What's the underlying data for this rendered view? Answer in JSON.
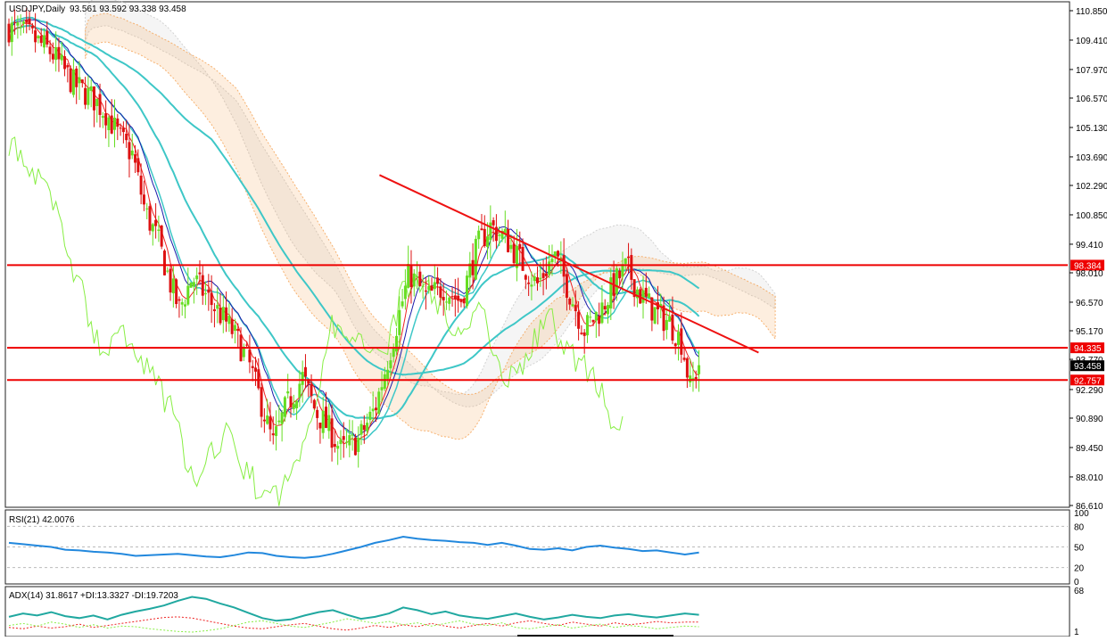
{
  "main": {
    "title": "USDJPY,Daily",
    "ohlc": "93.561 93.592 93.338 93.458"
  },
  "rsi_panel": {
    "label": "RSI(21) 42.0076"
  },
  "adx_panel": {
    "label": "ADX(14) 31.8617 +DI:13.3327 -DI:19.7203"
  },
  "colors": {
    "bull": "#66dd22",
    "bear": "#dd1111",
    "level": "#ee0000",
    "trend": "#ee1111",
    "teal": "#3ec7c7",
    "navy": "#1a1aaa",
    "red_ma": "#ee2222",
    "green_line": "#88ee44",
    "cloud_orange": "#f5a050",
    "cloud_gray": "#c8c8c8",
    "rsi": "#2288dd",
    "adx": "#20a8a0"
  },
  "chart_data": [
    {
      "type": "candlestick",
      "symbol": "USDJPY",
      "timeframe": "Daily",
      "ylim": [
        86.61,
        111.2
      ],
      "y_ticks": [
        "110.850",
        "109.410",
        "107.970",
        "106.570",
        "105.130",
        "103.690",
        "102.290",
        "100.850",
        "99.410",
        "98.010",
        "96.570",
        "95.170",
        "93.770",
        "92.290",
        "90.890",
        "89.450",
        "88.010",
        "86.610"
      ],
      "levels": [
        {
          "value": 98.384,
          "label": "98.384"
        },
        {
          "value": 94.335,
          "label": "94.335"
        },
        {
          "value": 92.757,
          "label": "92.757"
        }
      ],
      "current": {
        "value": 93.458,
        "label": "93.458"
      },
      "trendline": {
        "from": [
          0.435,
          102.8
        ],
        "to": [
          0.88,
          94.1
        ]
      },
      "price_path": [
        [
          0,
          110
        ],
        [
          0.025,
          109.6
        ],
        [
          0.05,
          108.8
        ],
        [
          0.075,
          107.3
        ],
        [
          0.1,
          106.5
        ],
        [
          0.115,
          105.8
        ],
        [
          0.13,
          104.6
        ],
        [
          0.145,
          103.8
        ],
        [
          0.16,
          101
        ],
        [
          0.175,
          99.6
        ],
        [
          0.19,
          97.4
        ],
        [
          0.2,
          96.2
        ],
        [
          0.215,
          97.8
        ],
        [
          0.24,
          96.4
        ],
        [
          0.26,
          95.3
        ],
        [
          0.28,
          93.8
        ],
        [
          0.295,
          91.8
        ],
        [
          0.31,
          89.6
        ],
        [
          0.325,
          91.4
        ],
        [
          0.345,
          92.9
        ],
        [
          0.36,
          91.2
        ],
        [
          0.375,
          90.4
        ],
        [
          0.39,
          89.3
        ],
        [
          0.41,
          89.8
        ],
        [
          0.43,
          91.4
        ],
        [
          0.45,
          94.6
        ],
        [
          0.47,
          98
        ],
        [
          0.49,
          96.8
        ],
        [
          0.51,
          97.3
        ],
        [
          0.53,
          96.6
        ],
        [
          0.55,
          99.3
        ],
        [
          0.565,
          100.3
        ],
        [
          0.585,
          99.6
        ],
        [
          0.605,
          98.3
        ],
        [
          0.62,
          97.4
        ],
        [
          0.64,
          98.9
        ],
        [
          0.655,
          97.4
        ],
        [
          0.675,
          95.2
        ],
        [
          0.695,
          96.2
        ],
        [
          0.71,
          97.4
        ],
        [
          0.725,
          98.3
        ],
        [
          0.74,
          97
        ],
        [
          0.76,
          96
        ],
        [
          0.775,
          95.6
        ],
        [
          0.79,
          94.6
        ],
        [
          0.8,
          92.3
        ],
        [
          0.81,
          93.6
        ]
      ]
    },
    {
      "type": "line",
      "name": "RSI(21)",
      "value": 42.0076,
      "ylim": [
        0,
        100
      ],
      "y_ticks": [
        "100",
        "80",
        "50",
        "20",
        "0"
      ],
      "levels": [
        80,
        50,
        20
      ],
      "values": [
        56,
        54,
        52,
        50,
        46,
        45,
        43,
        42,
        40,
        37,
        38,
        39,
        40,
        38,
        36,
        35,
        38,
        42,
        41,
        37,
        35,
        34,
        36,
        40,
        45,
        50,
        56,
        60,
        65,
        62,
        60,
        59,
        57,
        56,
        53,
        56,
        52,
        47,
        46,
        48,
        45,
        50,
        52,
        49,
        47,
        44,
        45,
        42,
        39,
        42
      ]
    },
    {
      "type": "line",
      "name": "ADX(14)",
      "ylim": [
        1,
        68
      ],
      "y_ticks": [
        "68",
        "1"
      ],
      "adx": 31.8617,
      "plus_di": 13.3327,
      "minus_di": 19.7203,
      "adx_values": [
        28,
        33,
        30,
        35,
        29,
        26,
        30,
        24,
        31,
        36,
        40,
        45,
        52,
        58,
        55,
        48,
        42,
        34,
        26,
        22,
        24,
        30,
        35,
        38,
        31,
        25,
        28,
        33,
        42,
        38,
        32,
        36,
        30,
        27,
        25,
        29,
        33,
        28,
        24,
        27,
        31,
        28,
        26,
        30,
        32,
        29,
        27,
        30,
        33,
        31
      ],
      "plus_di_values": [
        15,
        18,
        14,
        20,
        17,
        12,
        16,
        11,
        14,
        13,
        10,
        8,
        6,
        5,
        7,
        10,
        15,
        20,
        22,
        18,
        14,
        12,
        16,
        20,
        25,
        22,
        18,
        21,
        16,
        19,
        14,
        18,
        22,
        17,
        15,
        19,
        12,
        10,
        13,
        16,
        11,
        14,
        17,
        12,
        15,
        13,
        10,
        12,
        14,
        13
      ],
      "minus_di_values": [
        12,
        10,
        14,
        11,
        13,
        17,
        12,
        15,
        18,
        21,
        24,
        27,
        28,
        26,
        22,
        18,
        14,
        11,
        10,
        13,
        16,
        18,
        14,
        10,
        8,
        11,
        15,
        12,
        16,
        13,
        18,
        14,
        11,
        15,
        18,
        14,
        19,
        22,
        18,
        15,
        20,
        17,
        14,
        19,
        16,
        18,
        21,
        19,
        20,
        20
      ]
    }
  ]
}
